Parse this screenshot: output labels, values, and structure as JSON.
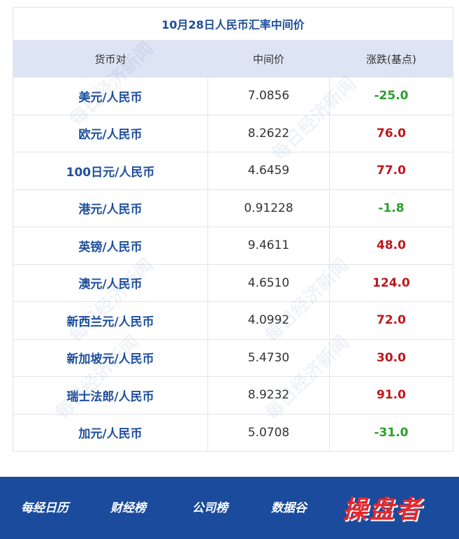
{
  "table": {
    "title": "10月28日人民币汇率中间价",
    "header": [
      "货币对",
      "中间价",
      "涨跌(基点)"
    ],
    "rows": [
      [
        "美元/人民币",
        "7.0856",
        "-25.0"
      ],
      [
        "欧元/人民币",
        "8.2622",
        "76.0"
      ],
      [
        "100日元/人民币",
        "4.6459",
        "77.0"
      ],
      [
        "港元/人民币",
        "0.91228",
        "-1.8"
      ],
      [
        "英镑/人民币",
        "9.4611",
        "48.0"
      ],
      [
        "澳元/人民币",
        "4.6510",
        "124.0"
      ],
      [
        "新西兰元/人民币",
        "4.0992",
        "72.0"
      ],
      [
        "新加坡元/人民币",
        "5.4730",
        "30.0"
      ],
      [
        "瑞士法郎/人民币",
        "8.9232",
        "91.0"
      ],
      [
        "加元/人民币",
        "5.0708",
        "-31.0"
      ]
    ]
  },
  "watermark": "每日经济新闻",
  "footer": {
    "nav": [
      "每经日历",
      "财经榜",
      "公司榜",
      "数据谷"
    ],
    "brand": "操盘者"
  }
}
